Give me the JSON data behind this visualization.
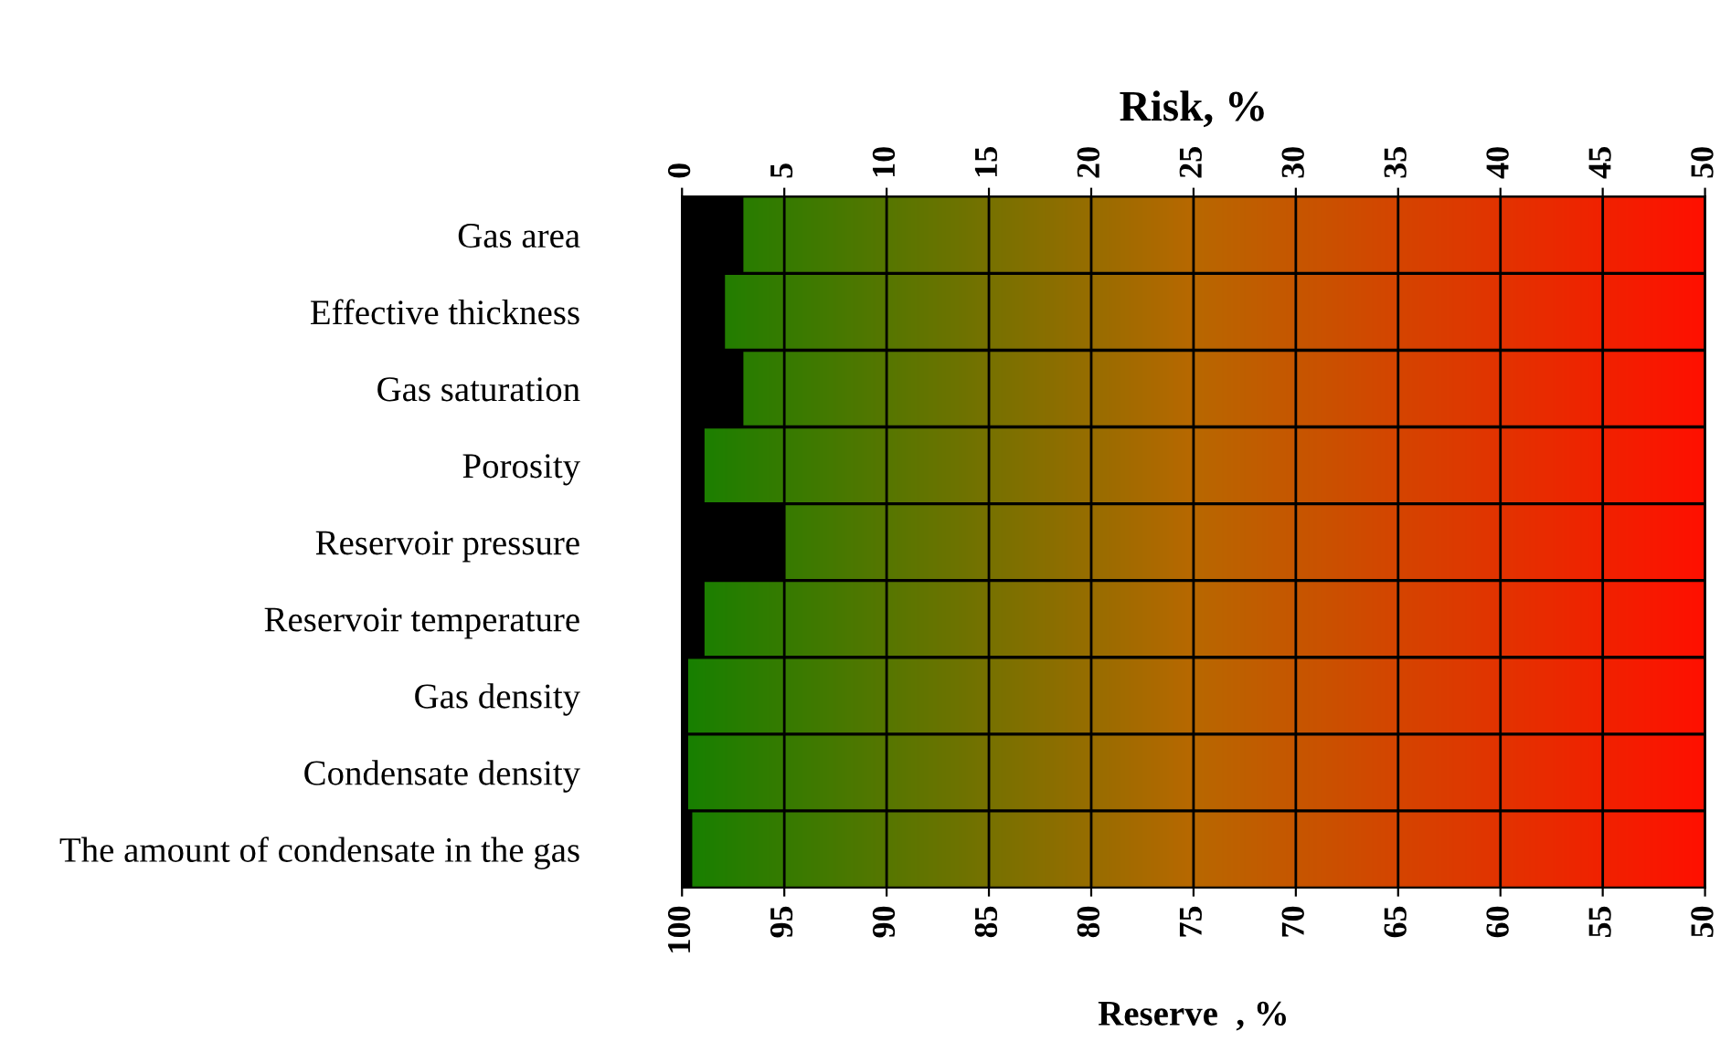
{
  "chart_data": {
    "type": "bar",
    "orientation": "horizontal",
    "x2label": "Risk, %",
    "xlabel": "Reserve  , %",
    "categories": [
      "Gas area",
      "Effective thickness",
      "Gas saturation",
      "Porosity",
      "Reservoir pressure",
      "Reservoir temperature",
      "Gas density",
      "Condensate density",
      "The amount of condensate in the gas"
    ],
    "series": [
      {
        "color": "#000000",
        "axis": "x2",
        "values": [
          3.0,
          2.1,
          3.0,
          1.1,
          5.0,
          1.1,
          0.3,
          0.3,
          0.5
        ]
      }
    ],
    "x2lim": [
      0,
      50
    ],
    "x2ticks": [
      0,
      5,
      10,
      15,
      20,
      25,
      30,
      35,
      40,
      45,
      50
    ],
    "xlim": [
      100,
      50
    ],
    "xticks": [
      100,
      95,
      90,
      85,
      80,
      75,
      70,
      65,
      60,
      55,
      50
    ],
    "grid": true
  }
}
